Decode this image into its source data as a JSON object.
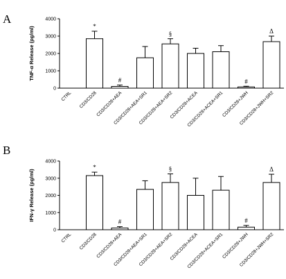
{
  "chart_data": [
    {
      "type": "bar",
      "panel": "A",
      "ylabel": "TNF-α Release (pg/ml)",
      "ylim": [
        0,
        4000
      ],
      "yticks": [
        "0",
        "1000",
        "2000",
        "3000",
        "4000"
      ],
      "categories": [
        "CTRL",
        "CD3/CD28",
        "CD3/CD28+AEA",
        "CD3/CD28+AEA+SR1",
        "CD3/CD28+AEA+SR2",
        "CD3/CD28+ACEA",
        "CD3/CD28+ACEA+SR1",
        "CD3/CD28+JWH",
        "CD3/CD28+JWH+SR2"
      ],
      "values": [
        0,
        2850,
        100,
        1750,
        2550,
        2000,
        2100,
        70,
        2680
      ],
      "errors": [
        0,
        430,
        80,
        650,
        300,
        300,
        350,
        40,
        320
      ],
      "annotations": [
        "",
        "*",
        "#",
        "",
        "§",
        "",
        "",
        "#",
        "Δ"
      ]
    },
    {
      "type": "bar",
      "panel": "B",
      "ylabel": "IFN-γ Release (pg/ml)",
      "ylim": [
        0,
        4000
      ],
      "yticks": [
        "0",
        "1000",
        "2000",
        "3000",
        "4000"
      ],
      "categories": [
        "CTRL",
        "CD3/CD28",
        "CD3/CD28+AEA",
        "CD3/CD28+AEA+SR1",
        "CD3/CD28+AEA+SR2",
        "CD3/CD28+ACEA",
        "CD3/CD28+ACEA+SR1",
        "CD3/CD28+JWH",
        "CD3/CD28+JWH+SR2"
      ],
      "values": [
        0,
        3150,
        100,
        2350,
        2750,
        2000,
        2300,
        150,
        2750
      ],
      "errors": [
        0,
        200,
        80,
        500,
        500,
        1000,
        800,
        100,
        480
      ],
      "annotations": [
        "",
        "*",
        "#",
        "",
        "§",
        "",
        "",
        "#",
        "Δ"
      ]
    }
  ]
}
